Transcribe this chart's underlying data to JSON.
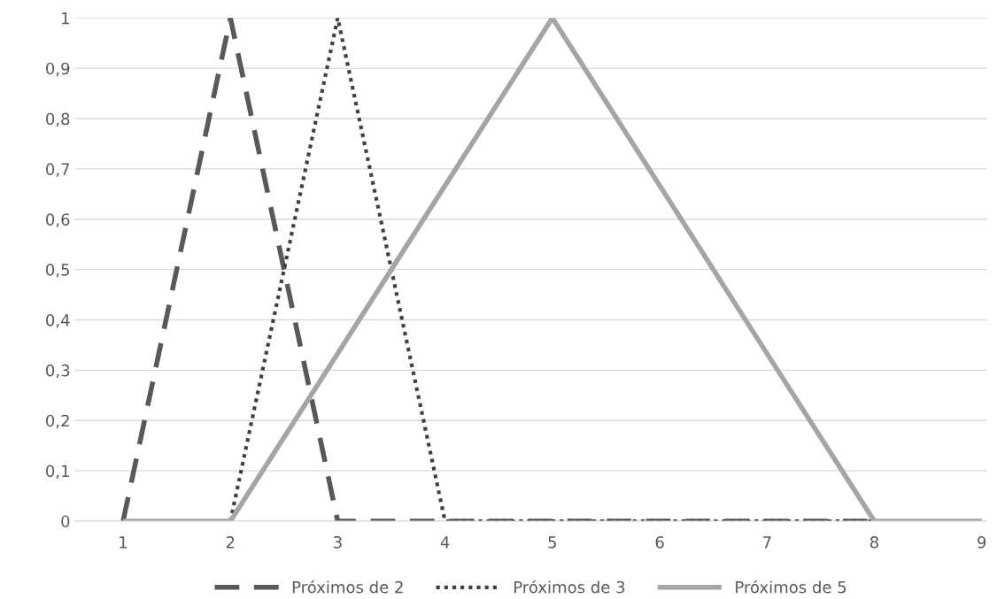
{
  "chart_data": {
    "type": "line",
    "categories": [
      "1",
      "2",
      "3",
      "4",
      "5",
      "6",
      "7",
      "8",
      "9"
    ],
    "series": [
      {
        "name": "Próximos de 2",
        "color": "#595959",
        "line_style": "dashed",
        "values": [
          0,
          1,
          0,
          0,
          0,
          0,
          0,
          0,
          null
        ]
      },
      {
        "name": "Próximos de 3",
        "color": "#404040",
        "line_style": "dotted",
        "values": [
          null,
          0,
          1,
          0,
          0,
          0,
          0,
          0,
          null
        ]
      },
      {
        "name": "Próximos de 5",
        "color": "#a5a5a5",
        "line_style": "solid",
        "values": [
          0,
          0,
          0.333,
          0.667,
          1,
          0.667,
          0.333,
          0,
          0
        ]
      }
    ],
    "ylim": [
      0,
      1
    ],
    "yticks": [
      0,
      {
        "value": 0.1,
        "label": "0,1"
      },
      {
        "value": 0.2,
        "label": "0,2"
      },
      {
        "value": 0.3,
        "label": "0,3"
      },
      {
        "value": 0.4,
        "label": "0,4"
      },
      {
        "value": 0.5,
        "label": "0,5"
      },
      {
        "value": 0.6,
        "label": "0,6"
      },
      {
        "value": 0.7,
        "label": "0,7"
      },
      {
        "value": 0.8,
        "label": "0,8"
      },
      {
        "value": 0.9,
        "label": "0,9"
      },
      1
    ],
    "grid": "y",
    "legend": "bottom",
    "marker": "none"
  }
}
